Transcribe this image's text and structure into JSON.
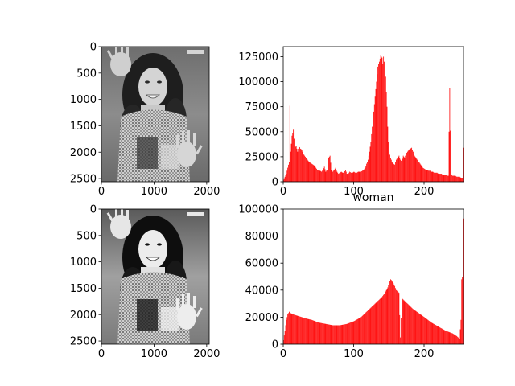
{
  "chart_data": [
    {
      "type": "image",
      "panel": "top-left",
      "image_description": "grayscale photo",
      "xlim": [
        0,
        2048
      ],
      "ylim": [
        2560,
        0
      ],
      "xticks": [
        0,
        1000,
        2000
      ],
      "yticks": [
        0,
        500,
        1000,
        1500,
        2000,
        2500
      ]
    },
    {
      "type": "bar",
      "panel": "top-right",
      "series_color": "#ff0000",
      "xlim": [
        0,
        256
      ],
      "ylim": [
        0,
        135000
      ],
      "xticks": [
        0,
        100,
        200
      ],
      "yticks": [
        0,
        25000,
        50000,
        75000,
        100000,
        125000
      ],
      "ytick_labels": [
        "0",
        "25000",
        "50000",
        "75000",
        "100000",
        "125000"
      ],
      "x": [
        0,
        4,
        8,
        9,
        10,
        12,
        14,
        16,
        18,
        20,
        22,
        24,
        26,
        28,
        30,
        32,
        34,
        36,
        38,
        40,
        42,
        44,
        46,
        48,
        50,
        52,
        54,
        56,
        58,
        60,
        62,
        64,
        66,
        68,
        70,
        72,
        74,
        76,
        78,
        80,
        82,
        84,
        86,
        88,
        90,
        92,
        94,
        96,
        98,
        100,
        102,
        104,
        106,
        108,
        110,
        112,
        114,
        116,
        118,
        120,
        122,
        124,
        126,
        128,
        130,
        132,
        134,
        136,
        138,
        140,
        141,
        142,
        143,
        144,
        145,
        146,
        147,
        148,
        149,
        150,
        152,
        154,
        156,
        158,
        160,
        162,
        164,
        166,
        168,
        170,
        172,
        174,
        176,
        178,
        180,
        182,
        184,
        186,
        188,
        190,
        192,
        194,
        196,
        198,
        200,
        202,
        204,
        206,
        208,
        210,
        212,
        214,
        216,
        218,
        220,
        222,
        224,
        226,
        228,
        230,
        232,
        234,
        236,
        238,
        240,
        242,
        244,
        246,
        248,
        250,
        252,
        254,
        255
      ],
      "values": [
        2000,
        8000,
        20000,
        76000,
        30000,
        46000,
        52000,
        34000,
        36000,
        30000,
        36000,
        33000,
        32000,
        28000,
        26000,
        24000,
        22000,
        20000,
        19000,
        18000,
        17000,
        16000,
        14000,
        12000,
        11000,
        11000,
        10000,
        12000,
        15000,
        10000,
        12000,
        24000,
        26000,
        12000,
        10000,
        12000,
        14000,
        10000,
        8000,
        9000,
        10000,
        9000,
        9000,
        12000,
        8000,
        8000,
        10000,
        9000,
        9000,
        10000,
        9000,
        9000,
        10000,
        10000,
        10000,
        11000,
        12000,
        14000,
        18000,
        22000,
        30000,
        40000,
        55000,
        70000,
        85000,
        100000,
        115000,
        120000,
        126000,
        124000,
        118000,
        125000,
        120000,
        115000,
        105000,
        90000,
        75000,
        55000,
        40000,
        30000,
        24000,
        20000,
        18000,
        17000,
        22000,
        24000,
        26000,
        22000,
        20000,
        26000,
        24000,
        28000,
        30000,
        32000,
        33000,
        34000,
        30000,
        26000,
        24000,
        22000,
        20000,
        18000,
        16000,
        14000,
        13000,
        12000,
        12000,
        11000,
        11000,
        10000,
        10000,
        9000,
        9000,
        9000,
        8000,
        8000,
        8000,
        7000,
        7000,
        7000,
        6000,
        6000,
        94000,
        8000,
        6000,
        6000,
        6000,
        5000,
        5000,
        5000,
        4000,
        4000,
        34000
      ]
    },
    {
      "type": "image",
      "panel": "bottom-left",
      "image_description": "grayscale photo, equalized",
      "xlim": [
        0,
        2048
      ],
      "ylim": [
        2560,
        0
      ],
      "xticks": [
        0,
        1000,
        2000
      ],
      "yticks": [
        0,
        500,
        1000,
        1500,
        2000,
        2500
      ]
    },
    {
      "type": "area",
      "panel": "bottom-right",
      "title": "woman",
      "series_color": "#ff0000",
      "xlim": [
        0,
        256
      ],
      "ylim": [
        0,
        100000
      ],
      "xticks": [
        0,
        100,
        200
      ],
      "yticks": [
        0,
        20000,
        40000,
        60000,
        80000,
        100000
      ],
      "ytick_labels": [
        "0",
        "20000",
        "40000",
        "60000",
        "80000",
        "100000"
      ],
      "x": [
        0,
        2,
        4,
        6,
        8,
        10,
        14,
        20,
        26,
        32,
        40,
        50,
        60,
        70,
        80,
        90,
        100,
        110,
        120,
        130,
        136,
        140,
        144,
        148,
        150,
        152,
        154,
        156,
        158,
        160,
        164,
        166,
        168,
        170,
        176,
        184,
        192,
        200,
        210,
        220,
        230,
        240,
        246,
        250,
        252,
        253,
        254,
        255
      ],
      "values": [
        3000,
        10000,
        18000,
        22000,
        24000,
        23000,
        22000,
        21000,
        20000,
        19000,
        18000,
        16000,
        15000,
        14000,
        14000,
        15000,
        17000,
        20000,
        25000,
        30000,
        33000,
        35000,
        38000,
        42000,
        46000,
        48000,
        47000,
        45000,
        43000,
        40000,
        38000,
        5000,
        34000,
        33000,
        30000,
        26000,
        23000,
        20000,
        16000,
        13000,
        10000,
        8000,
        6000,
        4000,
        18000,
        48000,
        50000,
        93000
      ]
    }
  ]
}
